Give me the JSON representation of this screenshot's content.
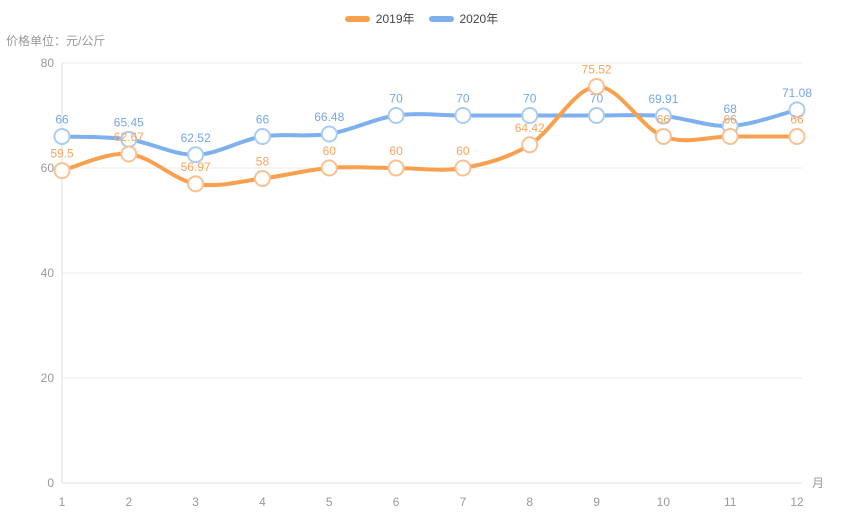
{
  "header": {
    "unit_label": "价格单位：元/公斤"
  },
  "legend": [
    {
      "label": "2019年",
      "color": "#f8a04e"
    },
    {
      "label": "2020年",
      "color": "#7db0ec"
    }
  ],
  "chart_data": {
    "type": "line",
    "smooth": true,
    "categories": [
      "1",
      "2",
      "3",
      "4",
      "5",
      "6",
      "7",
      "8",
      "9",
      "10",
      "11",
      "12"
    ],
    "xlabel": "月",
    "ylabel": "",
    "ylim": [
      0,
      80
    ],
    "y_ticks": [
      0,
      20,
      40,
      60,
      80
    ],
    "grid": true,
    "legend_position": "top-center",
    "series": [
      {
        "name": "2019年",
        "values": [
          59.5,
          62.67,
          56.97,
          58,
          60,
          60,
          60,
          64.42,
          75.52,
          66,
          66,
          66
        ],
        "color": "#f8a04e",
        "marker_stroke": "#fac090",
        "label_color": "#f9a45a",
        "z": 2
      },
      {
        "name": "2020年",
        "values": [
          66,
          65.45,
          62.52,
          66,
          66.48,
          70,
          70,
          70,
          70,
          69.91,
          68,
          71.08
        ],
        "color": "#7db0ec",
        "marker_stroke": "#abccf4",
        "label_color": "#74a7ea",
        "z": 1
      }
    ],
    "styles": {
      "grid_color": "#ebebeb",
      "axis_color": "#dfdfdf",
      "tick_color": "#999999",
      "marker_fill": "#ffffff"
    }
  }
}
